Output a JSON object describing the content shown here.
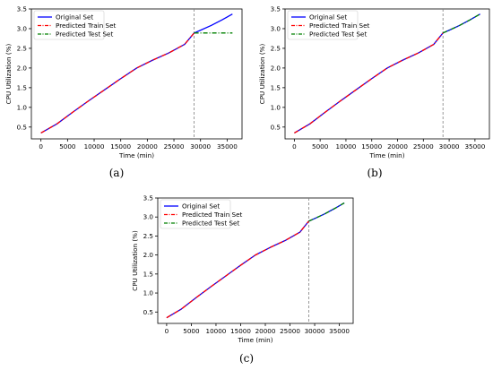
{
  "chart_data": [
    {
      "panel": "(a)",
      "type": "line",
      "xlabel": "Time (min)",
      "ylabel": "CPU Utilization (%)",
      "xlim": [
        -1800,
        37800
      ],
      "ylim": [
        0.2,
        3.5
      ],
      "xticks": [
        "0",
        "5000",
        "10000",
        "15000",
        "20000",
        "25000",
        "30000",
        "35000"
      ],
      "yticks": [
        "0.5",
        "1.0",
        "1.5",
        "2.0",
        "2.5",
        "3.0",
        "3.5"
      ],
      "split_x": 28800,
      "legend_loc": "top-left",
      "grid": false,
      "series": [
        {
          "name": "Original Set",
          "color": "#0000ff",
          "style": "solid",
          "x": [
            0,
            3000,
            6000,
            9000,
            12000,
            15000,
            18000,
            21000,
            24000,
            27000,
            28800,
            30000,
            32000,
            34000,
            36000
          ],
          "y": [
            0.35,
            0.58,
            0.88,
            1.17,
            1.45,
            1.73,
            2.0,
            2.2,
            2.38,
            2.6,
            2.89,
            2.96,
            3.08,
            3.22,
            3.37
          ]
        },
        {
          "name": "Predicted Train Set",
          "color": "#ff0000",
          "style": "dashdot",
          "x": [
            0,
            3000,
            6000,
            9000,
            12000,
            15000,
            18000,
            21000,
            24000,
            27000,
            28800
          ],
          "y": [
            0.35,
            0.58,
            0.88,
            1.17,
            1.45,
            1.73,
            2.0,
            2.2,
            2.38,
            2.6,
            2.89
          ]
        },
        {
          "name": "Predicted Test Set",
          "color": "#008000",
          "style": "dashdot",
          "x": [
            28800,
            30000,
            32000,
            34000,
            36000
          ],
          "y": [
            2.89,
            2.89,
            2.89,
            2.89,
            2.89
          ]
        }
      ]
    },
    {
      "panel": "(b)",
      "type": "line",
      "xlabel": "Time (min)",
      "ylabel": "CPU Utilization (%)",
      "xlim": [
        -1800,
        37800
      ],
      "ylim": [
        0.2,
        3.5
      ],
      "xticks": [
        "0",
        "5000",
        "10000",
        "15000",
        "20000",
        "25000",
        "30000",
        "35000"
      ],
      "yticks": [
        "0.5",
        "1.0",
        "1.5",
        "2.0",
        "2.5",
        "3.0",
        "3.5"
      ],
      "split_x": 28800,
      "legend_loc": "top-left",
      "grid": false,
      "series": [
        {
          "name": "Original Set",
          "color": "#0000ff",
          "style": "solid",
          "x": [
            0,
            3000,
            6000,
            9000,
            12000,
            15000,
            18000,
            21000,
            24000,
            27000,
            28800,
            30000,
            32000,
            34000,
            36000
          ],
          "y": [
            0.35,
            0.58,
            0.88,
            1.17,
            1.45,
            1.73,
            2.0,
            2.2,
            2.38,
            2.6,
            2.89,
            2.96,
            3.08,
            3.22,
            3.37
          ]
        },
        {
          "name": "Predicted Train Set",
          "color": "#ff0000",
          "style": "dashdot",
          "x": [
            0,
            3000,
            6000,
            9000,
            12000,
            15000,
            18000,
            21000,
            24000,
            27000,
            28800
          ],
          "y": [
            0.35,
            0.58,
            0.88,
            1.17,
            1.45,
            1.73,
            2.0,
            2.2,
            2.38,
            2.6,
            2.89
          ]
        },
        {
          "name": "Predicted Test Set",
          "color": "#008000",
          "style": "dashdot",
          "x": [
            28800,
            30000,
            32000,
            34000,
            36000
          ],
          "y": [
            2.89,
            2.96,
            3.08,
            3.22,
            3.37
          ]
        }
      ]
    },
    {
      "panel": "(c)",
      "type": "line",
      "xlabel": "Time (min)",
      "ylabel": "CPU Utilization (%)",
      "xlim": [
        -1800,
        37800
      ],
      "ylim": [
        0.2,
        3.5
      ],
      "xticks": [
        "0",
        "5000",
        "10000",
        "15000",
        "20000",
        "25000",
        "30000",
        "35000"
      ],
      "yticks": [
        "0.5",
        "1.0",
        "1.5",
        "2.0",
        "2.5",
        "3.0",
        "3.5"
      ],
      "split_x": 28800,
      "legend_loc": "top-left",
      "grid": false,
      "series": [
        {
          "name": "Original Set",
          "color": "#0000ff",
          "style": "solid",
          "x": [
            0,
            3000,
            6000,
            9000,
            12000,
            15000,
            18000,
            21000,
            24000,
            27000,
            28800,
            30000,
            32000,
            34000,
            36000
          ],
          "y": [
            0.35,
            0.58,
            0.88,
            1.17,
            1.45,
            1.73,
            2.0,
            2.2,
            2.38,
            2.6,
            2.89,
            2.96,
            3.08,
            3.22,
            3.37
          ]
        },
        {
          "name": "Predicted Train Set",
          "color": "#ff0000",
          "style": "dashdot",
          "x": [
            0,
            3000,
            6000,
            9000,
            12000,
            15000,
            18000,
            21000,
            24000,
            27000,
            28800
          ],
          "y": [
            0.35,
            0.58,
            0.88,
            1.17,
            1.45,
            1.73,
            2.0,
            2.2,
            2.38,
            2.6,
            2.89
          ]
        },
        {
          "name": "Predicted Test Set",
          "color": "#008000",
          "style": "dashdot",
          "x": [
            28800,
            30000,
            32000,
            34000,
            36000
          ],
          "y": [
            2.89,
            2.96,
            3.08,
            3.22,
            3.37
          ]
        }
      ]
    }
  ]
}
